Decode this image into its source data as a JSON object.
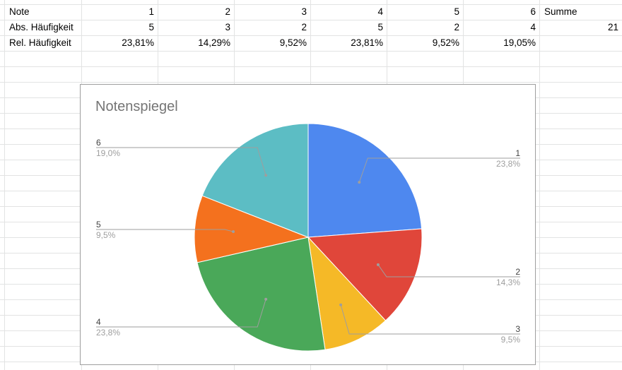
{
  "sheet": {
    "rows": [
      [
        "Note",
        "1",
        "2",
        "3",
        "4",
        "5",
        "6",
        "Summe"
      ],
      [
        "Abs. Häufigkeit",
        "5",
        "3",
        "2",
        "5",
        "2",
        "4",
        "21"
      ],
      [
        "Rel. Häufigkeit",
        "23,81%",
        "14,29%",
        "9,52%",
        "23,81%",
        "9,52%",
        "19,05%",
        ""
      ]
    ]
  },
  "chart_data": {
    "type": "pie",
    "title": "Notenspiegel",
    "legend": "labels with leader lines",
    "slices": [
      {
        "label": "1",
        "value": 5,
        "percent_label": "23,8%",
        "color": "#4e88ef"
      },
      {
        "label": "2",
        "value": 3,
        "percent_label": "14,3%",
        "color": "#e0463a"
      },
      {
        "label": "3",
        "value": 2,
        "percent_label": "9,5%",
        "color": "#f5b927"
      },
      {
        "label": "4",
        "value": 5,
        "percent_label": "23,8%",
        "color": "#4aa859"
      },
      {
        "label": "5",
        "value": 2,
        "percent_label": "9,5%",
        "color": "#f4711e"
      },
      {
        "label": "6",
        "value": 4,
        "percent_label": "19,0%",
        "color": "#5cbdc4"
      }
    ]
  }
}
